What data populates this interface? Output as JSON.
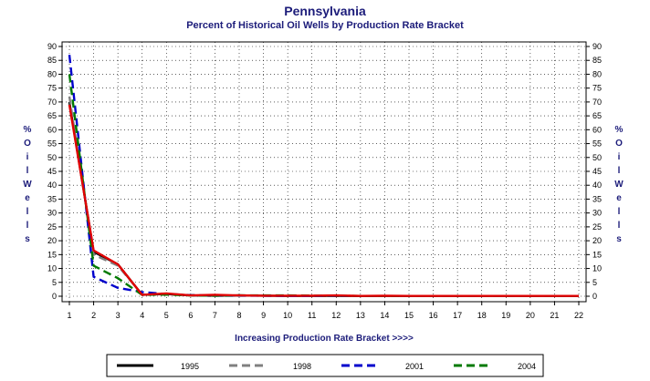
{
  "chart_data": {
    "type": "line",
    "title": "Pennsylvania",
    "subtitle": "Percent of Historical Oil Wells by Production Rate Bracket",
    "xlabel": "Increasing Production Rate Bracket >>>>",
    "ylabel": "% Oil Wells",
    "x": [
      1,
      2,
      3,
      4,
      5,
      6,
      7,
      8,
      9,
      10,
      11,
      12,
      13,
      14,
      15,
      16,
      17,
      18,
      19,
      20,
      21,
      22
    ],
    "xlim": [
      1,
      22
    ],
    "ylim": [
      0,
      90
    ],
    "yticks": [
      0,
      5,
      10,
      15,
      20,
      25,
      30,
      35,
      40,
      45,
      50,
      55,
      60,
      65,
      70,
      75,
      80,
      85,
      90
    ],
    "grid": true,
    "legend_position": "bottom",
    "series": [
      {
        "name": "1995",
        "color": "#000000",
        "dash": "solid",
        "values": [
          70,
          16,
          11.5,
          0.5,
          0.8,
          0.3,
          0.2,
          0.3,
          0.2,
          0.1,
          0.1,
          0.1,
          0.1,
          0.1,
          0.1,
          0.1,
          0.1,
          0.1,
          0.1,
          0.1,
          0.1,
          0.1
        ]
      },
      {
        "name": "1998",
        "color": "#808080",
        "dash": "dashed",
        "values": [
          72,
          15,
          11,
          0.6,
          0.8,
          0.3,
          0.2,
          0.3,
          0.2,
          0.1,
          0.1,
          0.1,
          0.1,
          0.1,
          0.1,
          0.1,
          0.1,
          0.1,
          0.1,
          0.1,
          0.1,
          0.1
        ]
      },
      {
        "name": "2001",
        "color": "#0000cc",
        "dash": "dashed",
        "values": [
          87,
          7,
          3,
          1.5,
          0.8,
          0.4,
          0.2,
          0.2,
          0.2,
          0.1,
          0.1,
          0.1,
          0.1,
          0.1,
          0.1,
          0.1,
          0.1,
          0.1,
          0.1,
          0.1,
          0.1,
          0.1
        ]
      },
      {
        "name": "2004",
        "color": "#007a00",
        "dash": "dashed",
        "values": [
          80,
          11,
          6.5,
          0.5,
          0.6,
          0.3,
          0.2,
          0.3,
          0.3,
          0.3,
          0.2,
          0.2,
          0.1,
          0.1,
          0.1,
          0.1,
          0.1,
          0.1,
          0.1,
          0.1,
          0.1,
          0.1
        ]
      },
      {
        "name": "",
        "color": "#e00000",
        "dash": "solid",
        "values": [
          69,
          16.5,
          11.5,
          0.5,
          1,
          0.3,
          0.5,
          0.3,
          0.2,
          0.2,
          0.2,
          0.3,
          0.1,
          0.2,
          0.1,
          0.1,
          0.1,
          0.1,
          0.1,
          0.1,
          0.1,
          0.1
        ]
      }
    ]
  }
}
